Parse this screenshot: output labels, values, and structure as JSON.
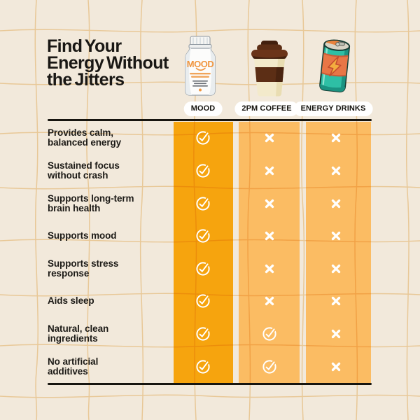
{
  "title": {
    "lines": [
      "Find Your",
      "Energy Without",
      "the Jitters"
    ]
  },
  "columns": [
    {
      "id": "mood",
      "label": "MOOD",
      "icon": "mood-supplement-bottle-icon",
      "icon_text": "MOOD",
      "highlight": true
    },
    {
      "id": "coffee",
      "label": "2PM COFFEE",
      "icon": "coffee-cup-icon",
      "highlight": false
    },
    {
      "id": "energy",
      "label": "ENERGY DRINKS",
      "icon": "energy-drink-can-icon",
      "highlight": false
    }
  ],
  "features": [
    {
      "lines": [
        "Provides calm,",
        "balanced energy"
      ],
      "marks": [
        "check",
        "cross",
        "cross"
      ]
    },
    {
      "lines": [
        "Sustained focus",
        "without crash"
      ],
      "marks": [
        "check",
        "cross",
        "cross"
      ]
    },
    {
      "lines": [
        "Supports long-term",
        "brain health"
      ],
      "marks": [
        "check",
        "cross",
        "cross"
      ]
    },
    {
      "lines": [
        "Supports mood"
      ],
      "marks": [
        "check",
        "cross",
        "cross"
      ]
    },
    {
      "lines": [
        "Supports stress",
        "response"
      ],
      "marks": [
        "check",
        "cross",
        "cross"
      ]
    },
    {
      "lines": [
        "Aids sleep"
      ],
      "marks": [
        "check",
        "cross",
        "cross"
      ]
    },
    {
      "lines": [
        "Natural, clean",
        "ingredients"
      ],
      "marks": [
        "check",
        "check",
        "cross"
      ]
    },
    {
      "lines": [
        "No artificial",
        "additives"
      ],
      "marks": [
        "check",
        "check",
        "cross"
      ]
    }
  ],
  "theme": {
    "background": "#F2E9DB",
    "grid_line": "#F3D29C",
    "column_highlight": "#F6A40E",
    "column_regular": "#FBBC63",
    "divider": "#17150F",
    "text": "#1C1A16",
    "pill_background": "#FFFFFF",
    "mark_color": "#FFFFFF"
  },
  "chart_data": {
    "type": "table",
    "title": "Find Your Energy Without the Jitters",
    "columns": [
      "MOOD",
      "2PM COFFEE",
      "ENERGY DRINKS"
    ],
    "rows": [
      {
        "feature": "Provides calm, balanced energy",
        "values": [
          true,
          false,
          false
        ]
      },
      {
        "feature": "Sustained focus without crash",
        "values": [
          true,
          false,
          false
        ]
      },
      {
        "feature": "Supports long-term brain health",
        "values": [
          true,
          false,
          false
        ]
      },
      {
        "feature": "Supports mood",
        "values": [
          true,
          false,
          false
        ]
      },
      {
        "feature": "Supports stress response",
        "values": [
          true,
          false,
          false
        ]
      },
      {
        "feature": "Aids sleep",
        "values": [
          true,
          false,
          false
        ]
      },
      {
        "feature": "Natural, clean ingredients",
        "values": [
          true,
          true,
          false
        ]
      },
      {
        "feature": "No artificial additives",
        "values": [
          true,
          true,
          false
        ]
      }
    ]
  }
}
